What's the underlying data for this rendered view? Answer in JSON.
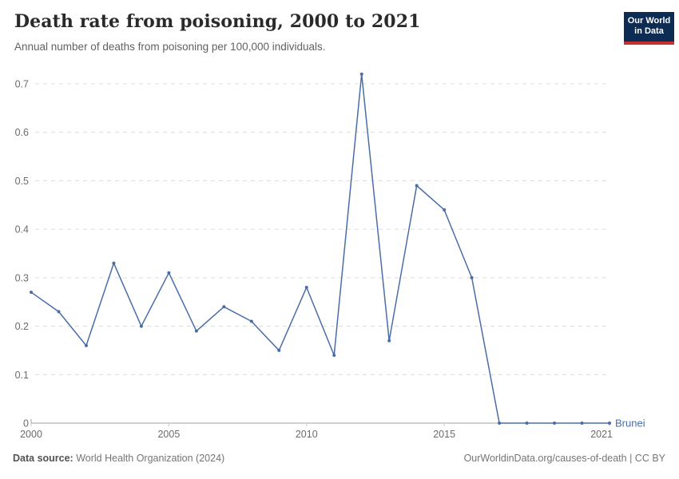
{
  "header": {
    "title": "Death rate from poisoning, 2000 to 2021",
    "subtitle": "Annual number of deaths from poisoning per 100,000 individuals.",
    "logo": {
      "line1": "Our World",
      "line2": "in Data",
      "bg": "#0d2c54",
      "stripe": "#c5312f"
    }
  },
  "chart_data": {
    "type": "line",
    "title": "Death rate from poisoning, 2000 to 2021",
    "xlabel": "",
    "ylabel": "",
    "x": [
      2000,
      2001,
      2002,
      2003,
      2004,
      2005,
      2006,
      2007,
      2008,
      2009,
      2010,
      2011,
      2012,
      2013,
      2014,
      2015,
      2016,
      2017,
      2018,
      2019,
      2020,
      2021
    ],
    "series": [
      {
        "name": "Brunei",
        "color": "#4a6da8",
        "values": [
          0.27,
          0.23,
          0.16,
          0.33,
          0.2,
          0.31,
          0.19,
          0.24,
          0.21,
          0.15,
          0.28,
          0.14,
          0.72,
          0.17,
          0.49,
          0.44,
          0.3,
          0,
          0,
          0,
          0,
          0
        ]
      }
    ],
    "xlim": [
      2000,
      2021
    ],
    "ylim": [
      0,
      0.72
    ],
    "xticks": [
      2000,
      2005,
      2010,
      2015,
      2021
    ],
    "yticks": [
      0,
      0.1,
      0.2,
      0.3,
      0.4,
      0.5,
      0.6,
      0.7
    ],
    "grid": "horizontal-dashed",
    "legend_position": "end-of-line",
    "entity_label": "Brunei"
  },
  "footer": {
    "source_label": "Data source:",
    "source_value": " World Health Organization (2024)",
    "credit": "OurWorldinData.org/causes-of-death | CC BY"
  },
  "colors": {
    "line": "#4a6da8",
    "grid": "#dcdcdc",
    "axis": "#a3a3a3",
    "tick_label": "#6b6b6b",
    "title": "#2a2a2a",
    "subtitle": "#616161",
    "footer_text": "#757575"
  }
}
